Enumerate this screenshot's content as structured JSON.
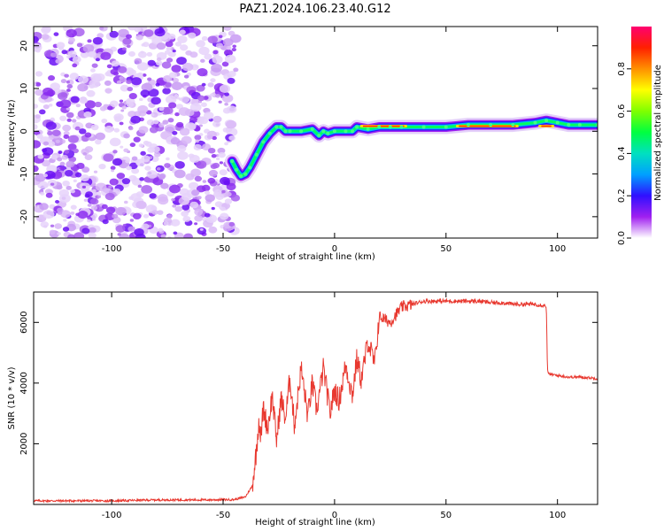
{
  "figure": {
    "title": "PAZ1.2024.106.23.40.G12"
  },
  "chart_data": [
    {
      "type": "heatmap",
      "name": "spectrogram",
      "xlabel": "Height of straight line (km)",
      "ylabel": "Frequency (Hz)",
      "xlim": [
        -135,
        118
      ],
      "ylim": [
        -25,
        24.5
      ],
      "xticks": [
        -100,
        -50,
        0,
        50,
        100
      ],
      "yticks": [
        20,
        10,
        0,
        -10,
        -20
      ],
      "xtick_labels": [
        "-100",
        "-50",
        "0",
        "50",
        "100"
      ],
      "ytick_labels": [
        "20",
        "10",
        "0",
        "-10",
        "-20"
      ],
      "noise_region_x": [
        -135,
        -44
      ],
      "ridge": {
        "x": [
          -46,
          -44,
          -42,
          -40,
          -38,
          -35,
          -32,
          -29,
          -26,
          -24,
          -22,
          -20,
          -15,
          -10,
          -7,
          -5,
          -3,
          0,
          5,
          8,
          10,
          15,
          20,
          25,
          30,
          40,
          50,
          60,
          70,
          80,
          90,
          95,
          100,
          105,
          110,
          118
        ],
        "y": [
          -7,
          -9,
          -10.5,
          -10,
          -8.5,
          -5.5,
          -2.5,
          -0.5,
          1,
          1,
          0,
          0,
          0,
          0.5,
          -1,
          0,
          -0.5,
          0,
          0,
          0,
          1,
          0.5,
          1,
          1,
          1,
          1,
          1,
          1.5,
          1.5,
          1.5,
          2,
          2.5,
          2,
          1.5,
          1.5,
          1.5
        ]
      },
      "colorbar": {
        "label": "Normalized spectral amplitude",
        "range": [
          0,
          1
        ],
        "ticks": [
          0.0,
          0.2,
          0.4,
          0.6,
          0.8
        ],
        "tick_labels": [
          "0.0",
          "0.2",
          "0.4",
          "0.6",
          "0.8"
        ]
      }
    },
    {
      "type": "line",
      "name": "snr",
      "xlabel": "Height of straight line (km)",
      "ylabel": "SNR (10 * v/v)",
      "xlim": [
        -135,
        118
      ],
      "ylim": [
        0,
        7000
      ],
      "xticks": [
        -100,
        -50,
        0,
        50,
        100
      ],
      "yticks": [
        2000,
        4000,
        6000
      ],
      "xtick_labels": [
        "-100",
        "-50",
        "0",
        "50",
        "100"
      ],
      "ytick_labels": [
        "2000",
        "4000",
        "6000"
      ],
      "color": "#e8382f",
      "series": [
        {
          "x": [
            -135,
            -120,
            -100,
            -80,
            -60,
            -45,
            -40,
            -37,
            -35,
            -34,
            -33,
            -32,
            -30,
            -28,
            -26,
            -24,
            -22,
            -20,
            -18,
            -15,
            -12,
            -10,
            -8,
            -5,
            -2,
            0,
            2,
            5,
            8,
            10,
            12,
            15,
            18,
            20,
            25,
            30,
            35,
            40,
            45,
            50,
            55,
            60,
            65,
            70,
            75,
            80,
            85,
            90,
            95,
            95.5,
            96,
            100,
            105,
            110,
            118
          ],
          "y": [
            120,
            120,
            120,
            150,
            150,
            160,
            250,
            600,
            1800,
            2800,
            2200,
            3200,
            2500,
            3600,
            2100,
            3500,
            2800,
            4200,
            2600,
            4500,
            2900,
            4000,
            3100,
            4500,
            3000,
            3800,
            3400,
            4600,
            3600,
            4800,
            4100,
            5400,
            4600,
            6200,
            6000,
            6500,
            6600,
            6700,
            6700,
            6700,
            6700,
            6700,
            6700,
            6650,
            6650,
            6600,
            6600,
            6600,
            6550,
            4400,
            4300,
            4250,
            4200,
            4200,
            4150
          ]
        }
      ]
    }
  ]
}
